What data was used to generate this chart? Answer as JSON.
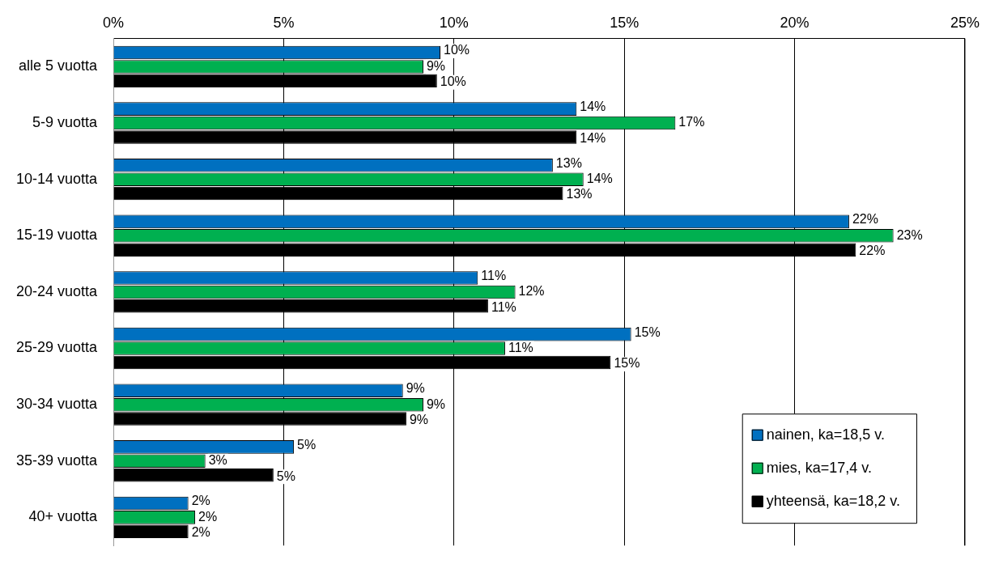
{
  "chart_data": {
    "type": "bar",
    "orientation": "horizontal",
    "categories": [
      "alle 5 vuotta",
      "5-9 vuotta",
      "10-14 vuotta",
      "15-19 vuotta",
      "20-24 vuotta",
      "25-29 vuotta",
      "30-34 vuotta",
      "35-39 vuotta",
      "40+ vuotta"
    ],
    "series": [
      {
        "name": "nainen, ka=18,5 v.",
        "color": "#0070c0",
        "values": [
          9.6,
          13.6,
          12.9,
          21.6,
          10.7,
          15.2,
          8.5,
          5.3,
          2.2
        ],
        "value_labels": [
          "10%",
          "14%",
          "13%",
          "22%",
          "11%",
          "15%",
          "9%",
          "5%",
          "2%"
        ]
      },
      {
        "name": "mies, ka=17,4 v.",
        "color": "#00b050",
        "values": [
          9.1,
          16.5,
          13.8,
          22.9,
          11.8,
          11.5,
          9.1,
          2.7,
          2.4
        ],
        "value_labels": [
          "9%",
          "17%",
          "14%",
          "23%",
          "12%",
          "11%",
          "9%",
          "3%",
          "2%"
        ]
      },
      {
        "name": "yhteensä, ka=18,2 v.",
        "color": "#000000",
        "values": [
          9.5,
          13.6,
          13.2,
          21.8,
          11.0,
          14.6,
          8.6,
          4.7,
          2.2
        ],
        "value_labels": [
          "10%",
          "14%",
          "13%",
          "22%",
          "11%",
          "15%",
          "9%",
          "5%",
          "2%"
        ]
      }
    ],
    "xlim": [
      0,
      25
    ],
    "xticks": [
      {
        "value": 0,
        "label": "0%"
      },
      {
        "value": 5,
        "label": "5%"
      },
      {
        "value": 10,
        "label": "10%"
      },
      {
        "value": 15,
        "label": "15%"
      },
      {
        "value": 20,
        "label": "20%"
      },
      {
        "value": 25,
        "label": "25%"
      }
    ],
    "grid": "x",
    "legend": "bottom right"
  }
}
